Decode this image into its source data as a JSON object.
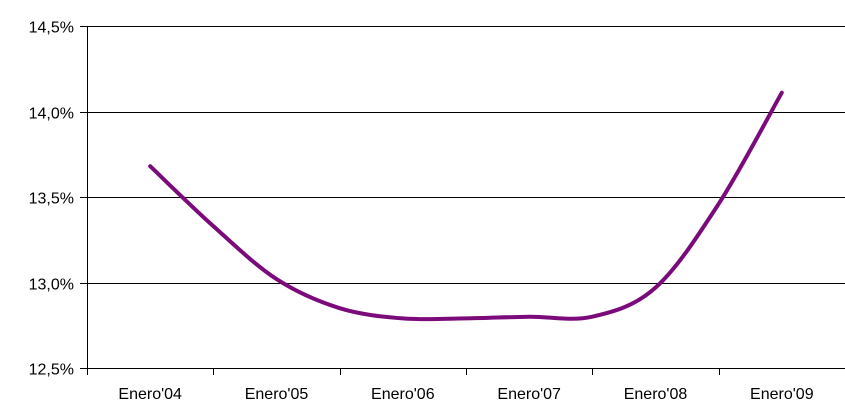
{
  "chart_data": {
    "type": "line",
    "title": "",
    "xlabel": "",
    "ylabel": "",
    "categories": [
      "Enero'04",
      "Enero'05",
      "Enero'06",
      "Enero'07",
      "Enero'08",
      "Enero'09"
    ],
    "y_ticks": [
      "12,5%",
      "13,0%",
      "13,5%",
      "14,0%",
      "14,5%"
    ],
    "ylim": [
      12.5,
      14.5
    ],
    "grid": true,
    "legend": "none",
    "series": [
      {
        "color": "#7B0A7B",
        "x": [
          0,
          0.5,
          1,
          1.5,
          2,
          2.5,
          3,
          3.5,
          4,
          4.5,
          5
        ],
        "values": [
          13.68,
          13.33,
          13.02,
          12.85,
          12.79,
          12.79,
          12.8,
          12.8,
          12.97,
          13.46,
          14.11
        ]
      }
    ]
  }
}
